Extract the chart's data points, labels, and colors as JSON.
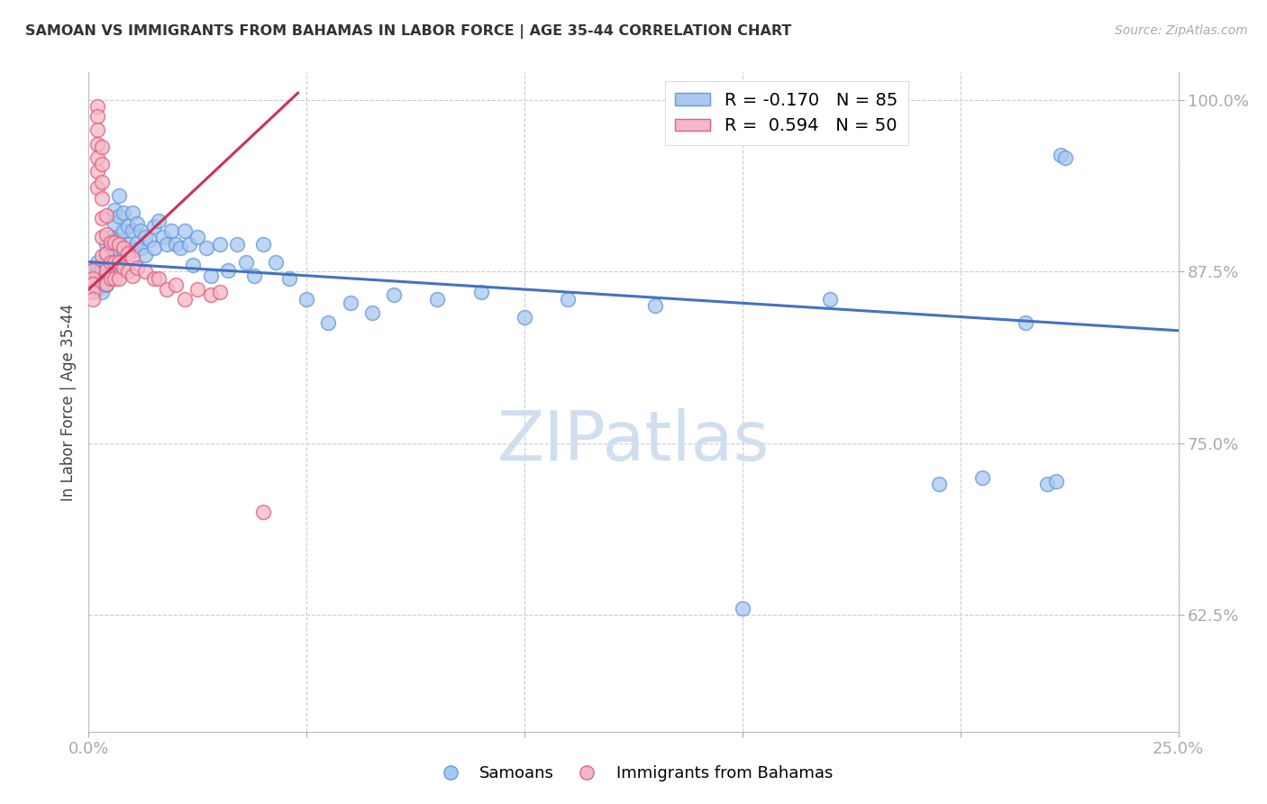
{
  "title": "SAMOAN VS IMMIGRANTS FROM BAHAMAS IN LABOR FORCE | AGE 35-44 CORRELATION CHART",
  "source": "Source: ZipAtlas.com",
  "ylabel": "In Labor Force | Age 35-44",
  "xlim": [
    0.0,
    0.25
  ],
  "ylim": [
    0.54,
    1.02
  ],
  "xticks": [
    0.0,
    0.05,
    0.1,
    0.15,
    0.2,
    0.25
  ],
  "xticklabels": [
    "0.0%",
    "",
    "",
    "",
    "",
    "25.0%"
  ],
  "yticks": [
    0.625,
    0.75,
    0.875,
    1.0
  ],
  "yticklabels": [
    "62.5%",
    "75.0%",
    "87.5%",
    "100.0%"
  ],
  "blue_color": "#A8C8F0",
  "pink_color": "#F5B8C8",
  "blue_edge_color": "#6699DD",
  "pink_edge_color": "#E06080",
  "blue_line_color": "#4472C4",
  "pink_line_color": "#CC3355",
  "watermark_color": "#D0DFF0",
  "blue_R": -0.17,
  "blue_N": 85,
  "pink_R": 0.594,
  "pink_N": 50,
  "blue_line_x": [
    0.0,
    0.25
  ],
  "blue_line_y": [
    0.882,
    0.832
  ],
  "pink_line_x": [
    0.0,
    0.048
  ],
  "pink_line_y": [
    0.862,
    1.005
  ],
  "blue_scatter_x": [
    0.001,
    0.001,
    0.001,
    0.002,
    0.002,
    0.002,
    0.002,
    0.002,
    0.003,
    0.003,
    0.003,
    0.003,
    0.003,
    0.004,
    0.004,
    0.004,
    0.004,
    0.004,
    0.005,
    0.005,
    0.005,
    0.005,
    0.006,
    0.006,
    0.006,
    0.006,
    0.007,
    0.007,
    0.007,
    0.008,
    0.008,
    0.008,
    0.009,
    0.009,
    0.01,
    0.01,
    0.01,
    0.011,
    0.011,
    0.012,
    0.012,
    0.013,
    0.013,
    0.014,
    0.015,
    0.015,
    0.016,
    0.017,
    0.018,
    0.019,
    0.02,
    0.021,
    0.022,
    0.023,
    0.024,
    0.025,
    0.027,
    0.028,
    0.03,
    0.032,
    0.034,
    0.036,
    0.038,
    0.04,
    0.043,
    0.046,
    0.05,
    0.055,
    0.06,
    0.065,
    0.07,
    0.08,
    0.09,
    0.1,
    0.11,
    0.13,
    0.15,
    0.17,
    0.195,
    0.205,
    0.215,
    0.22,
    0.222,
    0.223,
    0.224
  ],
  "blue_scatter_y": [
    0.876,
    0.872,
    0.865,
    0.882,
    0.878,
    0.874,
    0.868,
    0.862,
    0.88,
    0.875,
    0.87,
    0.865,
    0.86,
    0.895,
    0.888,
    0.88,
    0.872,
    0.865,
    0.9,
    0.892,
    0.883,
    0.875,
    0.92,
    0.91,
    0.898,
    0.886,
    0.93,
    0.915,
    0.898,
    0.918,
    0.905,
    0.89,
    0.908,
    0.895,
    0.918,
    0.905,
    0.89,
    0.91,
    0.896,
    0.905,
    0.892,
    0.9,
    0.887,
    0.898,
    0.908,
    0.892,
    0.912,
    0.9,
    0.895,
    0.905,
    0.895,
    0.892,
    0.905,
    0.895,
    0.88,
    0.9,
    0.892,
    0.872,
    0.895,
    0.876,
    0.895,
    0.882,
    0.872,
    0.895,
    0.882,
    0.87,
    0.855,
    0.838,
    0.852,
    0.845,
    0.858,
    0.855,
    0.86,
    0.842,
    0.855,
    0.85,
    0.63,
    0.855,
    0.72,
    0.725,
    0.838,
    0.72,
    0.722,
    0.96,
    0.958
  ],
  "pink_scatter_x": [
    0.001,
    0.001,
    0.001,
    0.001,
    0.001,
    0.002,
    0.002,
    0.002,
    0.002,
    0.002,
    0.002,
    0.002,
    0.003,
    0.003,
    0.003,
    0.003,
    0.003,
    0.003,
    0.003,
    0.004,
    0.004,
    0.004,
    0.004,
    0.004,
    0.005,
    0.005,
    0.005,
    0.006,
    0.006,
    0.006,
    0.007,
    0.007,
    0.007,
    0.008,
    0.008,
    0.009,
    0.009,
    0.01,
    0.01,
    0.011,
    0.013,
    0.015,
    0.016,
    0.018,
    0.02,
    0.022,
    0.025,
    0.028,
    0.03,
    0.04
  ],
  "pink_scatter_y": [
    0.876,
    0.87,
    0.866,
    0.86,
    0.855,
    0.995,
    0.988,
    0.978,
    0.968,
    0.958,
    0.948,
    0.936,
    0.966,
    0.953,
    0.94,
    0.928,
    0.914,
    0.9,
    0.886,
    0.916,
    0.902,
    0.888,
    0.876,
    0.866,
    0.896,
    0.882,
    0.87,
    0.896,
    0.882,
    0.87,
    0.895,
    0.882,
    0.87,
    0.892,
    0.878,
    0.888,
    0.875,
    0.885,
    0.872,
    0.878,
    0.875,
    0.87,
    0.87,
    0.862,
    0.865,
    0.855,
    0.862,
    0.858,
    0.86,
    0.7
  ]
}
